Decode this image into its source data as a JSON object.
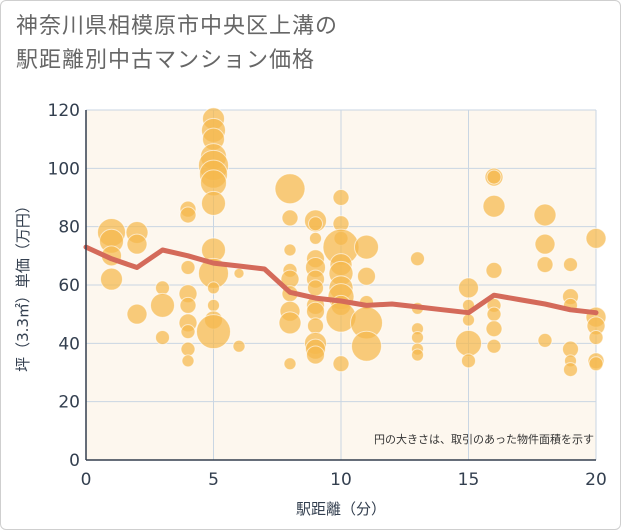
{
  "title_line1": "神奈川県相模原市中央区上溝の",
  "title_line2": "駅距離別中古マンション価格",
  "note": "円の大きさは、取引のあった物件面積を示す",
  "colors": {
    "bubble": "#f5b84c",
    "trend": "#d46a5a",
    "plot_bg": "#fdf7ee",
    "grid": "#c9d6e3",
    "axis_text": "#333f4f"
  },
  "chart_data": {
    "type": "scatter",
    "title": "神奈川県相模原市中央区上溝の駅距離別中古マンション価格",
    "xlabel": "駅距離（分）",
    "ylabel": "坪（3.3㎡）単価（万円）",
    "xlim": [
      0,
      20
    ],
    "ylim": [
      0,
      120
    ],
    "xticks": [
      0,
      5,
      10,
      15,
      20
    ],
    "yticks": [
      0,
      20,
      40,
      60,
      80,
      100,
      120
    ],
    "grid": true,
    "points": [
      {
        "x": 1,
        "y": 78,
        "size": 14
      },
      {
        "x": 1,
        "y": 75,
        "size": 12
      },
      {
        "x": 1,
        "y": 70,
        "size": 10
      },
      {
        "x": 1,
        "y": 62,
        "size": 11
      },
      {
        "x": 2,
        "y": 78,
        "size": 11
      },
      {
        "x": 2,
        "y": 74,
        "size": 10
      },
      {
        "x": 2,
        "y": 50,
        "size": 10
      },
      {
        "x": 3,
        "y": 59,
        "size": 7
      },
      {
        "x": 3,
        "y": 53,
        "size": 12
      },
      {
        "x": 3,
        "y": 42,
        "size": 7
      },
      {
        "x": 4,
        "y": 86,
        "size": 8
      },
      {
        "x": 4,
        "y": 84,
        "size": 8
      },
      {
        "x": 4,
        "y": 66,
        "size": 7
      },
      {
        "x": 4,
        "y": 57,
        "size": 9
      },
      {
        "x": 4,
        "y": 53,
        "size": 8
      },
      {
        "x": 4,
        "y": 47,
        "size": 9
      },
      {
        "x": 4,
        "y": 44,
        "size": 7
      },
      {
        "x": 4,
        "y": 38,
        "size": 7
      },
      {
        "x": 4,
        "y": 34,
        "size": 6
      },
      {
        "x": 5,
        "y": 117,
        "size": 11
      },
      {
        "x": 5,
        "y": 113,
        "size": 12
      },
      {
        "x": 5,
        "y": 110,
        "size": 11
      },
      {
        "x": 5,
        "y": 104,
        "size": 13
      },
      {
        "x": 5,
        "y": 101,
        "size": 15
      },
      {
        "x": 5,
        "y": 98,
        "size": 14
      },
      {
        "x": 5,
        "y": 95,
        "size": 13
      },
      {
        "x": 5,
        "y": 88,
        "size": 12
      },
      {
        "x": 5,
        "y": 72,
        "size": 12
      },
      {
        "x": 5,
        "y": 64,
        "size": 15
      },
      {
        "x": 5,
        "y": 59,
        "size": 6
      },
      {
        "x": 5,
        "y": 53,
        "size": 6
      },
      {
        "x": 5,
        "y": 48,
        "size": 9
      },
      {
        "x": 5,
        "y": 44,
        "size": 17
      },
      {
        "x": 6,
        "y": 64,
        "size": 5
      },
      {
        "x": 6,
        "y": 39,
        "size": 6
      },
      {
        "x": 8,
        "y": 93,
        "size": 15
      },
      {
        "x": 8,
        "y": 83,
        "size": 8
      },
      {
        "x": 8,
        "y": 72,
        "size": 6
      },
      {
        "x": 8,
        "y": 65,
        "size": 7
      },
      {
        "x": 8,
        "y": 62,
        "size": 9
      },
      {
        "x": 8,
        "y": 57,
        "size": 8
      },
      {
        "x": 8,
        "y": 51,
        "size": 10
      },
      {
        "x": 8,
        "y": 47,
        "size": 11
      },
      {
        "x": 8,
        "y": 33,
        "size": 6
      },
      {
        "x": 9,
        "y": 82,
        "size": 11
      },
      {
        "x": 9,
        "y": 81,
        "size": 7
      },
      {
        "x": 9,
        "y": 76,
        "size": 6
      },
      {
        "x": 9,
        "y": 69,
        "size": 9
      },
      {
        "x": 9,
        "y": 66,
        "size": 10
      },
      {
        "x": 9,
        "y": 62,
        "size": 9
      },
      {
        "x": 9,
        "y": 59,
        "size": 8
      },
      {
        "x": 9,
        "y": 53,
        "size": 9
      },
      {
        "x": 9,
        "y": 51,
        "size": 9
      },
      {
        "x": 9,
        "y": 46,
        "size": 8
      },
      {
        "x": 9,
        "y": 40,
        "size": 11
      },
      {
        "x": 9,
        "y": 38,
        "size": 10
      },
      {
        "x": 9,
        "y": 36,
        "size": 9
      },
      {
        "x": 10,
        "y": 90,
        "size": 8
      },
      {
        "x": 10,
        "y": 81,
        "size": 8
      },
      {
        "x": 10,
        "y": 76,
        "size": 7
      },
      {
        "x": 10,
        "y": 73,
        "size": 18
      },
      {
        "x": 10,
        "y": 67,
        "size": 11
      },
      {
        "x": 10,
        "y": 64,
        "size": 12
      },
      {
        "x": 10,
        "y": 59,
        "size": 12
      },
      {
        "x": 10,
        "y": 56,
        "size": 13
      },
      {
        "x": 10,
        "y": 53,
        "size": 10
      },
      {
        "x": 10,
        "y": 49,
        "size": 15
      },
      {
        "x": 10,
        "y": 33,
        "size": 8
      },
      {
        "x": 11,
        "y": 73,
        "size": 12
      },
      {
        "x": 11,
        "y": 63,
        "size": 9
      },
      {
        "x": 11,
        "y": 54,
        "size": 7
      },
      {
        "x": 11,
        "y": 47,
        "size": 16
      },
      {
        "x": 11,
        "y": 39,
        "size": 15
      },
      {
        "x": 13,
        "y": 69,
        "size": 7
      },
      {
        "x": 13,
        "y": 52,
        "size": 6
      },
      {
        "x": 13,
        "y": 45,
        "size": 6
      },
      {
        "x": 13,
        "y": 42,
        "size": 6
      },
      {
        "x": 13,
        "y": 38,
        "size": 6
      },
      {
        "x": 13,
        "y": 36,
        "size": 6
      },
      {
        "x": 15,
        "y": 59,
        "size": 10
      },
      {
        "x": 15,
        "y": 53,
        "size": 6
      },
      {
        "x": 15,
        "y": 48,
        "size": 6
      },
      {
        "x": 15,
        "y": 40,
        "size": 13
      },
      {
        "x": 15,
        "y": 34,
        "size": 7
      },
      {
        "x": 16,
        "y": 97,
        "size": 9
      },
      {
        "x": 16,
        "y": 97,
        "size": 7
      },
      {
        "x": 16,
        "y": 87,
        "size": 11
      },
      {
        "x": 16,
        "y": 65,
        "size": 8
      },
      {
        "x": 16,
        "y": 53,
        "size": 7
      },
      {
        "x": 16,
        "y": 50,
        "size": 7
      },
      {
        "x": 16,
        "y": 45,
        "size": 8
      },
      {
        "x": 16,
        "y": 39,
        "size": 7
      },
      {
        "x": 18,
        "y": 84,
        "size": 11
      },
      {
        "x": 18,
        "y": 74,
        "size": 10
      },
      {
        "x": 18,
        "y": 67,
        "size": 8
      },
      {
        "x": 18,
        "y": 41,
        "size": 7
      },
      {
        "x": 19,
        "y": 67,
        "size": 7
      },
      {
        "x": 19,
        "y": 56,
        "size": 8
      },
      {
        "x": 19,
        "y": 53,
        "size": 7
      },
      {
        "x": 19,
        "y": 38,
        "size": 8
      },
      {
        "x": 19,
        "y": 34,
        "size": 6
      },
      {
        "x": 19,
        "y": 31,
        "size": 7
      },
      {
        "x": 20,
        "y": 76,
        "size": 10
      },
      {
        "x": 20,
        "y": 49,
        "size": 10
      },
      {
        "x": 20,
        "y": 46,
        "size": 9
      },
      {
        "x": 20,
        "y": 42,
        "size": 7
      },
      {
        "x": 20,
        "y": 34,
        "size": 8
      },
      {
        "x": 20,
        "y": 33,
        "size": 7
      }
    ],
    "trend": [
      {
        "x": 0,
        "y": 73
      },
      {
        "x": 1,
        "y": 69
      },
      {
        "x": 2,
        "y": 66
      },
      {
        "x": 3,
        "y": 72
      },
      {
        "x": 4,
        "y": 70
      },
      {
        "x": 5,
        "y": 67.5
      },
      {
        "x": 6,
        "y": 66.5
      },
      {
        "x": 7,
        "y": 65.5
      },
      {
        "x": 8,
        "y": 57.5
      },
      {
        "x": 9,
        "y": 55.5
      },
      {
        "x": 10,
        "y": 54.5
      },
      {
        "x": 11,
        "y": 53
      },
      {
        "x": 12,
        "y": 53.5
      },
      {
        "x": 13,
        "y": 52.5
      },
      {
        "x": 14,
        "y": 51.5
      },
      {
        "x": 15,
        "y": 50.5
      },
      {
        "x": 16,
        "y": 56.5
      },
      {
        "x": 17,
        "y": 55
      },
      {
        "x": 18,
        "y": 53.5
      },
      {
        "x": 19,
        "y": 51.5
      },
      {
        "x": 20,
        "y": 50.5
      }
    ]
  }
}
